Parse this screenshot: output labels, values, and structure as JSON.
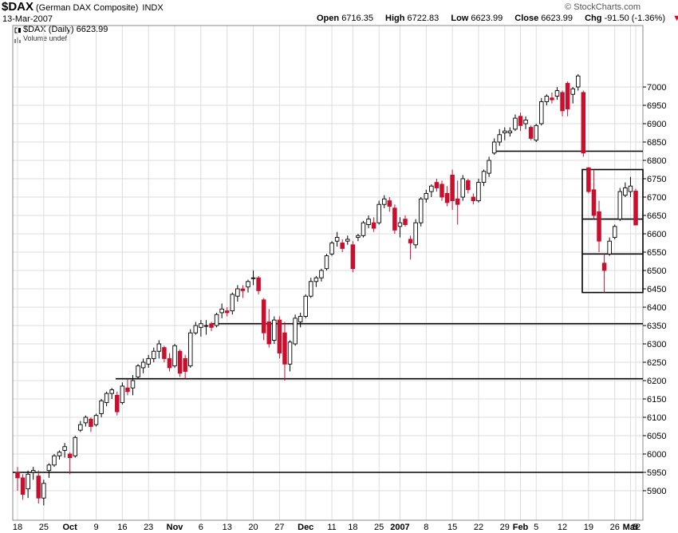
{
  "header": {
    "symbol": "$DAX",
    "description": "(German DAX Composite)",
    "exchange": "INDX",
    "date": "13-Mar-2007",
    "open_label": "Open",
    "open": "6716.35",
    "high_label": "High",
    "high": "6722.83",
    "low_label": "Low",
    "low": "6623.99",
    "close_label": "Close",
    "close": "6623.99",
    "chg_label": "Chg",
    "chg": "-91.50 (-1.36%)",
    "chg_arrow": "▼",
    "brand": "© StockCharts.com",
    "legend_series": "$DAX (Daily) 6623.99",
    "legend_volume": "Volume undef",
    "down_color": "#c8102e"
  },
  "chart_data": {
    "type": "candlestick",
    "title": "$DAX (German DAX Composite) INDX",
    "y_axis_side": "right",
    "ylim": [
      5870,
      7040
    ],
    "y_ticks": [
      5900,
      5950,
      6000,
      6050,
      6100,
      6150,
      6200,
      6250,
      6300,
      6350,
      6400,
      6450,
      6500,
      6550,
      6600,
      6650,
      6700,
      6750,
      6800,
      6850,
      6900,
      6950,
      7000
    ],
    "x_labels": [
      "18",
      "25",
      "Oct",
      "9",
      "16",
      "23",
      "Nov",
      "6",
      "13",
      "20",
      "27",
      "Dec",
      "11",
      "18",
      "25",
      "2007",
      "8",
      "15",
      "22",
      "29",
      "Feb",
      "5",
      "12",
      "19",
      "26",
      "Mar",
      "5",
      "12"
    ],
    "x_label_bold": [
      "Oct",
      "Nov",
      "Dec",
      "2007",
      "Feb",
      "Mar"
    ],
    "grid": true,
    "candles": [
      {
        "o": 5950,
        "h": 5965,
        "l": 5900,
        "c": 5935
      },
      {
        "o": 5935,
        "h": 5945,
        "l": 5875,
        "c": 5890
      },
      {
        "o": 5905,
        "h": 5955,
        "l": 5880,
        "c": 5945
      },
      {
        "o": 5950,
        "h": 5965,
        "l": 5930,
        "c": 5955
      },
      {
        "o": 5940,
        "h": 5955,
        "l": 5865,
        "c": 5880
      },
      {
        "o": 5880,
        "h": 5930,
        "l": 5860,
        "c": 5920
      },
      {
        "o": 5955,
        "h": 5975,
        "l": 5935,
        "c": 5970
      },
      {
        "o": 5970,
        "h": 6000,
        "l": 5965,
        "c": 5995
      },
      {
        "o": 5995,
        "h": 6010,
        "l": 5985,
        "c": 6005
      },
      {
        "o": 6010,
        "h": 6030,
        "l": 5990,
        "c": 6020
      },
      {
        "o": 6000,
        "h": 6005,
        "l": 5945,
        "c": 5990
      },
      {
        "o": 5995,
        "h": 6050,
        "l": 5990,
        "c": 6045
      },
      {
        "o": 6065,
        "h": 6090,
        "l": 6060,
        "c": 6080
      },
      {
        "o": 6085,
        "h": 6105,
        "l": 6075,
        "c": 6100
      },
      {
        "o": 6095,
        "h": 6100,
        "l": 6060,
        "c": 6075
      },
      {
        "o": 6080,
        "h": 6110,
        "l": 6075,
        "c": 6105
      },
      {
        "o": 6110,
        "h": 6150,
        "l": 6100,
        "c": 6145
      },
      {
        "o": 6140,
        "h": 6170,
        "l": 6130,
        "c": 6165
      },
      {
        "o": 6165,
        "h": 6180,
        "l": 6150,
        "c": 6175
      },
      {
        "o": 6160,
        "h": 6170,
        "l": 6105,
        "c": 6115
      },
      {
        "o": 6140,
        "h": 6195,
        "l": 6135,
        "c": 6185
      },
      {
        "o": 6180,
        "h": 6205,
        "l": 6160,
        "c": 6170
      },
      {
        "o": 6180,
        "h": 6215,
        "l": 6160,
        "c": 6200
      },
      {
        "o": 6210,
        "h": 6245,
        "l": 6205,
        "c": 6240
      },
      {
        "o": 6235,
        "h": 6260,
        "l": 6220,
        "c": 6250
      },
      {
        "o": 6245,
        "h": 6270,
        "l": 6235,
        "c": 6260
      },
      {
        "o": 6260,
        "h": 6290,
        "l": 6250,
        "c": 6280
      },
      {
        "o": 6280,
        "h": 6310,
        "l": 6260,
        "c": 6300
      },
      {
        "o": 6290,
        "h": 6295,
        "l": 6250,
        "c": 6260
      },
      {
        "o": 6260,
        "h": 6275,
        "l": 6225,
        "c": 6235
      },
      {
        "o": 6240,
        "h": 6300,
        "l": 6235,
        "c": 6295
      },
      {
        "o": 6280,
        "h": 6285,
        "l": 6210,
        "c": 6220
      },
      {
        "o": 6260,
        "h": 6270,
        "l": 6205,
        "c": 6225
      },
      {
        "o": 6240,
        "h": 6340,
        "l": 6235,
        "c": 6330
      },
      {
        "o": 6330,
        "h": 6360,
        "l": 6325,
        "c": 6350
      },
      {
        "o": 6345,
        "h": 6365,
        "l": 6320,
        "c": 6355
      },
      {
        "o": 6350,
        "h": 6365,
        "l": 6325,
        "c": 6350
      },
      {
        "o": 6355,
        "h": 6360,
        "l": 6335,
        "c": 6345
      },
      {
        "o": 6350,
        "h": 6385,
        "l": 6345,
        "c": 6380
      },
      {
        "o": 6385,
        "h": 6410,
        "l": 6370,
        "c": 6395
      },
      {
        "o": 6390,
        "h": 6400,
        "l": 6375,
        "c": 6385
      },
      {
        "o": 6390,
        "h": 6440,
        "l": 6380,
        "c": 6435
      },
      {
        "o": 6430,
        "h": 6460,
        "l": 6415,
        "c": 6450
      },
      {
        "o": 6450,
        "h": 6460,
        "l": 6425,
        "c": 6445
      },
      {
        "o": 6455,
        "h": 6475,
        "l": 6440,
        "c": 6470
      },
      {
        "o": 6480,
        "h": 6500,
        "l": 6460,
        "c": 6480
      },
      {
        "o": 6480,
        "h": 6485,
        "l": 6435,
        "c": 6445
      },
      {
        "o": 6420,
        "h": 6425,
        "l": 6310,
        "c": 6330
      },
      {
        "o": 6360,
        "h": 6395,
        "l": 6290,
        "c": 6300
      },
      {
        "o": 6310,
        "h": 6375,
        "l": 6300,
        "c": 6365
      },
      {
        "o": 6365,
        "h": 6375,
        "l": 6260,
        "c": 6275
      },
      {
        "o": 6330,
        "h": 6360,
        "l": 6200,
        "c": 6245
      },
      {
        "o": 6245,
        "h": 6310,
        "l": 6225,
        "c": 6305
      },
      {
        "o": 6300,
        "h": 6380,
        "l": 6295,
        "c": 6370
      },
      {
        "o": 6360,
        "h": 6385,
        "l": 6345,
        "c": 6375
      },
      {
        "o": 6375,
        "h": 6435,
        "l": 6370,
        "c": 6430
      },
      {
        "o": 6430,
        "h": 6480,
        "l": 6425,
        "c": 6470
      },
      {
        "o": 6470,
        "h": 6485,
        "l": 6455,
        "c": 6480
      },
      {
        "o": 6480,
        "h": 6505,
        "l": 6470,
        "c": 6500
      },
      {
        "o": 6505,
        "h": 6545,
        "l": 6500,
        "c": 6540
      },
      {
        "o": 6545,
        "h": 6580,
        "l": 6540,
        "c": 6575
      },
      {
        "o": 6580,
        "h": 6605,
        "l": 6565,
        "c": 6590
      },
      {
        "o": 6575,
        "h": 6585,
        "l": 6550,
        "c": 6560
      },
      {
        "o": 6580,
        "h": 6595,
        "l": 6570,
        "c": 6585
      },
      {
        "o": 6570,
        "h": 6580,
        "l": 6495,
        "c": 6505
      },
      {
        "o": 6590,
        "h": 6600,
        "l": 6580,
        "c": 6595
      },
      {
        "o": 6595,
        "h": 6635,
        "l": 6590,
        "c": 6630
      },
      {
        "o": 6625,
        "h": 6650,
        "l": 6615,
        "c": 6640
      },
      {
        "o": 6630,
        "h": 6645,
        "l": 6605,
        "c": 6615
      },
      {
        "o": 6630,
        "h": 6690,
        "l": 6625,
        "c": 6680
      },
      {
        "o": 6680,
        "h": 6705,
        "l": 6670,
        "c": 6695
      },
      {
        "o": 6690,
        "h": 6700,
        "l": 6660,
        "c": 6675
      },
      {
        "o": 6670,
        "h": 6680,
        "l": 6600,
        "c": 6610
      },
      {
        "o": 6620,
        "h": 6645,
        "l": 6590,
        "c": 6630
      },
      {
        "o": 6640,
        "h": 6650,
        "l": 6620,
        "c": 6625
      },
      {
        "o": 6585,
        "h": 6595,
        "l": 6530,
        "c": 6575
      },
      {
        "o": 6570,
        "h": 6640,
        "l": 6560,
        "c": 6630
      },
      {
        "o": 6630,
        "h": 6700,
        "l": 6620,
        "c": 6695
      },
      {
        "o": 6695,
        "h": 6720,
        "l": 6685,
        "c": 6710
      },
      {
        "o": 6715,
        "h": 6735,
        "l": 6700,
        "c": 6730
      },
      {
        "o": 6740,
        "h": 6750,
        "l": 6715,
        "c": 6725
      },
      {
        "o": 6735,
        "h": 6745,
        "l": 6690,
        "c": 6700
      },
      {
        "o": 6710,
        "h": 6730,
        "l": 6675,
        "c": 6685
      },
      {
        "o": 6760,
        "h": 6775,
        "l": 6665,
        "c": 6690
      },
      {
        "o": 6695,
        "h": 6745,
        "l": 6625,
        "c": 6680
      },
      {
        "o": 6700,
        "h": 6760,
        "l": 6690,
        "c": 6750
      },
      {
        "o": 6745,
        "h": 6750,
        "l": 6710,
        "c": 6720
      },
      {
        "o": 6700,
        "h": 6710,
        "l": 6680,
        "c": 6690
      },
      {
        "o": 6690,
        "h": 6750,
        "l": 6685,
        "c": 6740
      },
      {
        "o": 6740,
        "h": 6775,
        "l": 6730,
        "c": 6770
      },
      {
        "o": 6765,
        "h": 6810,
        "l": 6755,
        "c": 6800
      },
      {
        "o": 6820,
        "h": 6860,
        "l": 6815,
        "c": 6850
      },
      {
        "o": 6850,
        "h": 6885,
        "l": 6840,
        "c": 6870
      },
      {
        "o": 6875,
        "h": 6890,
        "l": 6855,
        "c": 6880
      },
      {
        "o": 6875,
        "h": 6890,
        "l": 6865,
        "c": 6880
      },
      {
        "o": 6885,
        "h": 6925,
        "l": 6880,
        "c": 6915
      },
      {
        "o": 6920,
        "h": 6930,
        "l": 6880,
        "c": 6895
      },
      {
        "o": 6900,
        "h": 6920,
        "l": 6885,
        "c": 6910
      },
      {
        "o": 6890,
        "h": 6895,
        "l": 6855,
        "c": 6860
      },
      {
        "o": 6855,
        "h": 6900,
        "l": 6850,
        "c": 6895
      },
      {
        "o": 6900,
        "h": 6970,
        "l": 6895,
        "c": 6960
      },
      {
        "o": 6960,
        "h": 6980,
        "l": 6950,
        "c": 6975
      },
      {
        "o": 6970,
        "h": 6985,
        "l": 6955,
        "c": 6965
      },
      {
        "o": 6975,
        "h": 7000,
        "l": 6965,
        "c": 6990
      },
      {
        "o": 6985,
        "h": 6990,
        "l": 6920,
        "c": 6935
      },
      {
        "o": 7010,
        "h": 7015,
        "l": 6920,
        "c": 6940
      },
      {
        "o": 6980,
        "h": 7000,
        "l": 6955,
        "c": 6995
      },
      {
        "o": 7000,
        "h": 7035,
        "l": 6990,
        "c": 7030
      },
      {
        "o": 6985,
        "h": 6990,
        "l": 6810,
        "c": 6820
      },
      {
        "o": 6780,
        "h": 6780,
        "l": 6710,
        "c": 6715
      },
      {
        "o": 6720,
        "h": 6775,
        "l": 6640,
        "c": 6650
      },
      {
        "o": 6660,
        "h": 6690,
        "l": 6550,
        "c": 6580
      },
      {
        "o": 6520,
        "h": 6545,
        "l": 6440,
        "c": 6500
      },
      {
        "o": 6545,
        "h": 6590,
        "l": 6540,
        "c": 6580
      },
      {
        "o": 6590,
        "h": 6625,
        "l": 6585,
        "c": 6620
      },
      {
        "o": 6640,
        "h": 6725,
        "l": 6635,
        "c": 6715
      },
      {
        "o": 6705,
        "h": 6740,
        "l": 6700,
        "c": 6725
      },
      {
        "o": 6715,
        "h": 6755,
        "l": 6700,
        "c": 6730
      },
      {
        "o": 6716.35,
        "h": 6722.83,
        "l": 6623.99,
        "c": 6623.99
      }
    ],
    "support_lines": [
      5950,
      6205,
      6355,
      6825
    ],
    "box": {
      "top": 6775,
      "lines": [
        6640,
        6545
      ],
      "bottom": 6440
    }
  }
}
